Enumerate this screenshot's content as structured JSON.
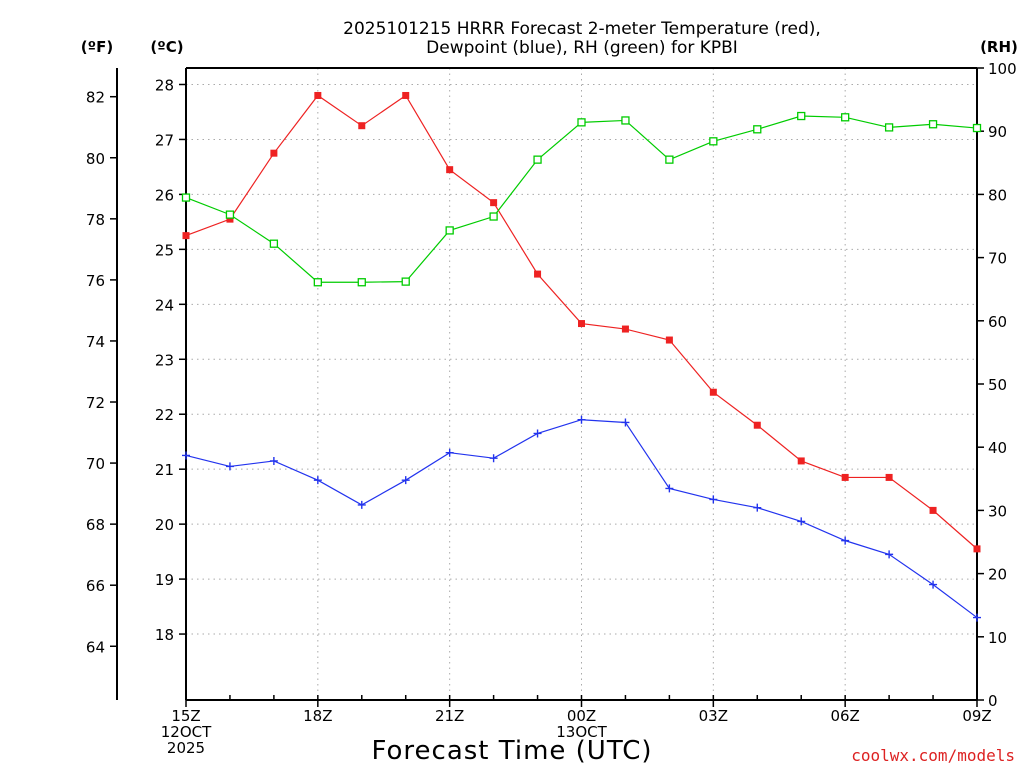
{
  "chart_data": {
    "type": "line",
    "title": [
      "2025101215 HRRR Forecast 2-meter Temperature (red),",
      "Dewpoint (blue), RH (green) for KPBI"
    ],
    "xlabel": "Forecast Time (UTC)",
    "x": [
      "15Z",
      "16Z",
      "17Z",
      "18Z",
      "19Z",
      "20Z",
      "21Z",
      "22Z",
      "23Z",
      "00Z",
      "01Z",
      "02Z",
      "03Z",
      "04Z",
      "05Z",
      "06Z",
      "07Z",
      "08Z",
      "09Z"
    ],
    "x_ticks": [
      {
        "index": 0,
        "lines": [
          "15Z",
          "12OCT",
          "2025"
        ]
      },
      {
        "index": 3,
        "lines": [
          "18Z"
        ]
      },
      {
        "index": 6,
        "lines": [
          "21Z"
        ]
      },
      {
        "index": 9,
        "lines": [
          "00Z",
          "13OCT"
        ]
      },
      {
        "index": 12,
        "lines": [
          "03Z"
        ]
      },
      {
        "index": 15,
        "lines": [
          "06Z"
        ]
      },
      {
        "index": 18,
        "lines": [
          "09Z"
        ]
      }
    ],
    "axes": {
      "celsius": {
        "label": "(ºC)",
        "ylim": [
          16.8,
          28.3
        ],
        "ticks": [
          18,
          19,
          20,
          21,
          22,
          23,
          24,
          25,
          26,
          27,
          28
        ]
      },
      "fahrenheit": {
        "label": "(ºF)",
        "ylim": [
          62.24,
          82.94
        ],
        "ticks": [
          64,
          66,
          68,
          70,
          72,
          74,
          76,
          78,
          80,
          82
        ]
      },
      "rh": {
        "label": "(RH)",
        "ylim": [
          0,
          100
        ],
        "ticks": [
          0,
          10,
          20,
          30,
          40,
          50,
          60,
          70,
          80,
          90,
          100
        ]
      }
    },
    "grid": true,
    "series": [
      {
        "name": "Temperature",
        "axis": "celsius",
        "color": "#ee2222",
        "marker": "filled-square",
        "values": [
          25.25,
          25.55,
          26.75,
          27.8,
          27.25,
          27.8,
          26.45,
          25.85,
          24.55,
          23.65,
          23.55,
          23.35,
          22.4,
          21.8,
          21.15,
          20.85,
          20.85,
          20.25,
          19.55
        ]
      },
      {
        "name": "Dewpoint",
        "axis": "celsius",
        "color": "#2233ee",
        "marker": "plus",
        "values": [
          21.25,
          21.05,
          21.15,
          20.8,
          20.35,
          20.8,
          21.3,
          21.2,
          21.65,
          21.9,
          21.85,
          20.65,
          20.45,
          20.3,
          20.05,
          19.7,
          19.45,
          18.9,
          18.3
        ]
      },
      {
        "name": "RH",
        "axis": "rh",
        "color": "#00cc00",
        "marker": "open-square",
        "values": [
          79.5,
          76.8,
          72.2,
          66.1,
          66.1,
          66.2,
          74.3,
          76.5,
          85.5,
          91.4,
          91.7,
          85.5,
          88.4,
          90.3,
          92.4,
          92.2,
          90.6,
          91.1,
          90.5
        ]
      }
    ]
  },
  "credit": "coolwx.com/models",
  "colors": {
    "temperature": "#ee2222",
    "dewpoint": "#2233ee",
    "rh": "#00cc00",
    "credit": "#dd2222"
  }
}
